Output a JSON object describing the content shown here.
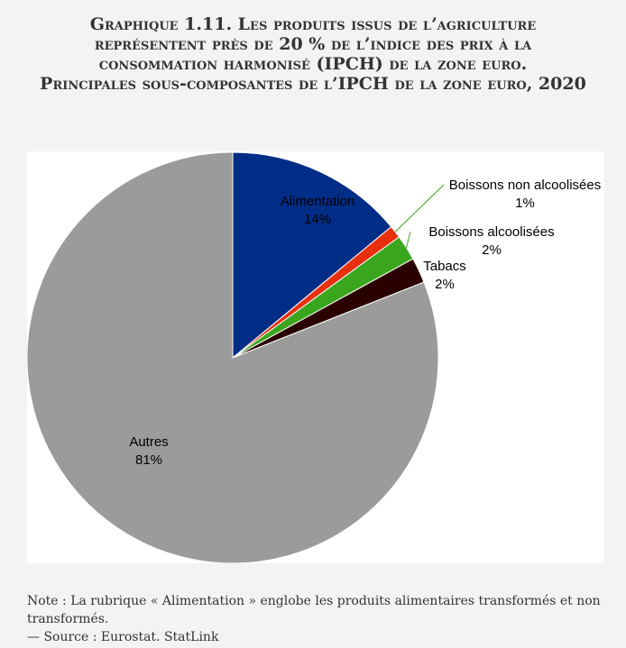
{
  "chart_data": {
    "type": "pie",
    "title": "Graphique 1.11. Les produits issus de l’agriculture représentent près de 20 % de l’indice des prix à la consommation harmonisé (IPCH) de la zone euro.",
    "subtitle": "Principales sous-composantes de l’IPCH de la zone euro, 2020",
    "categories": [
      "Alimentation",
      "Boissons non alcoolisées",
      "Boissons alcoolisées",
      "Tabacs",
      "Autres"
    ],
    "values": [
      14,
      1,
      2,
      2,
      81
    ],
    "value_labels": [
      "14%",
      "1%",
      "2%",
      "2%",
      "81%"
    ],
    "colors": [
      "#002d86",
      "#e8300f",
      "#3aa61d",
      "#2b0000",
      "#9b9b9b"
    ],
    "note": "Note : La rubrique « Alimentation » englobe les produits alimentaires transformés et non transformés.",
    "source": "— Source : Eurostat. StatLink"
  }
}
